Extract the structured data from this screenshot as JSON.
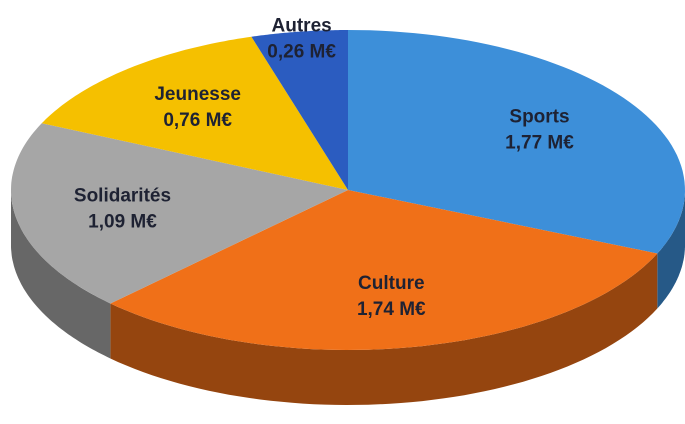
{
  "chart_data": {
    "type": "pie3d",
    "categories": [
      "Sports",
      "Culture",
      "Solidarités",
      "Jeunesse",
      "Autres"
    ],
    "values": [
      1.77,
      1.74,
      1.09,
      0.76,
      0.26
    ],
    "value_labels": [
      "1,77 M€",
      "1,74 M€",
      "1,09 M€",
      "0,76 M€",
      "0,26 M€"
    ],
    "colors": [
      "#3d8fd9",
      "#f07018",
      "#a6a6a6",
      "#f5c000",
      "#2b5cc0"
    ]
  }
}
